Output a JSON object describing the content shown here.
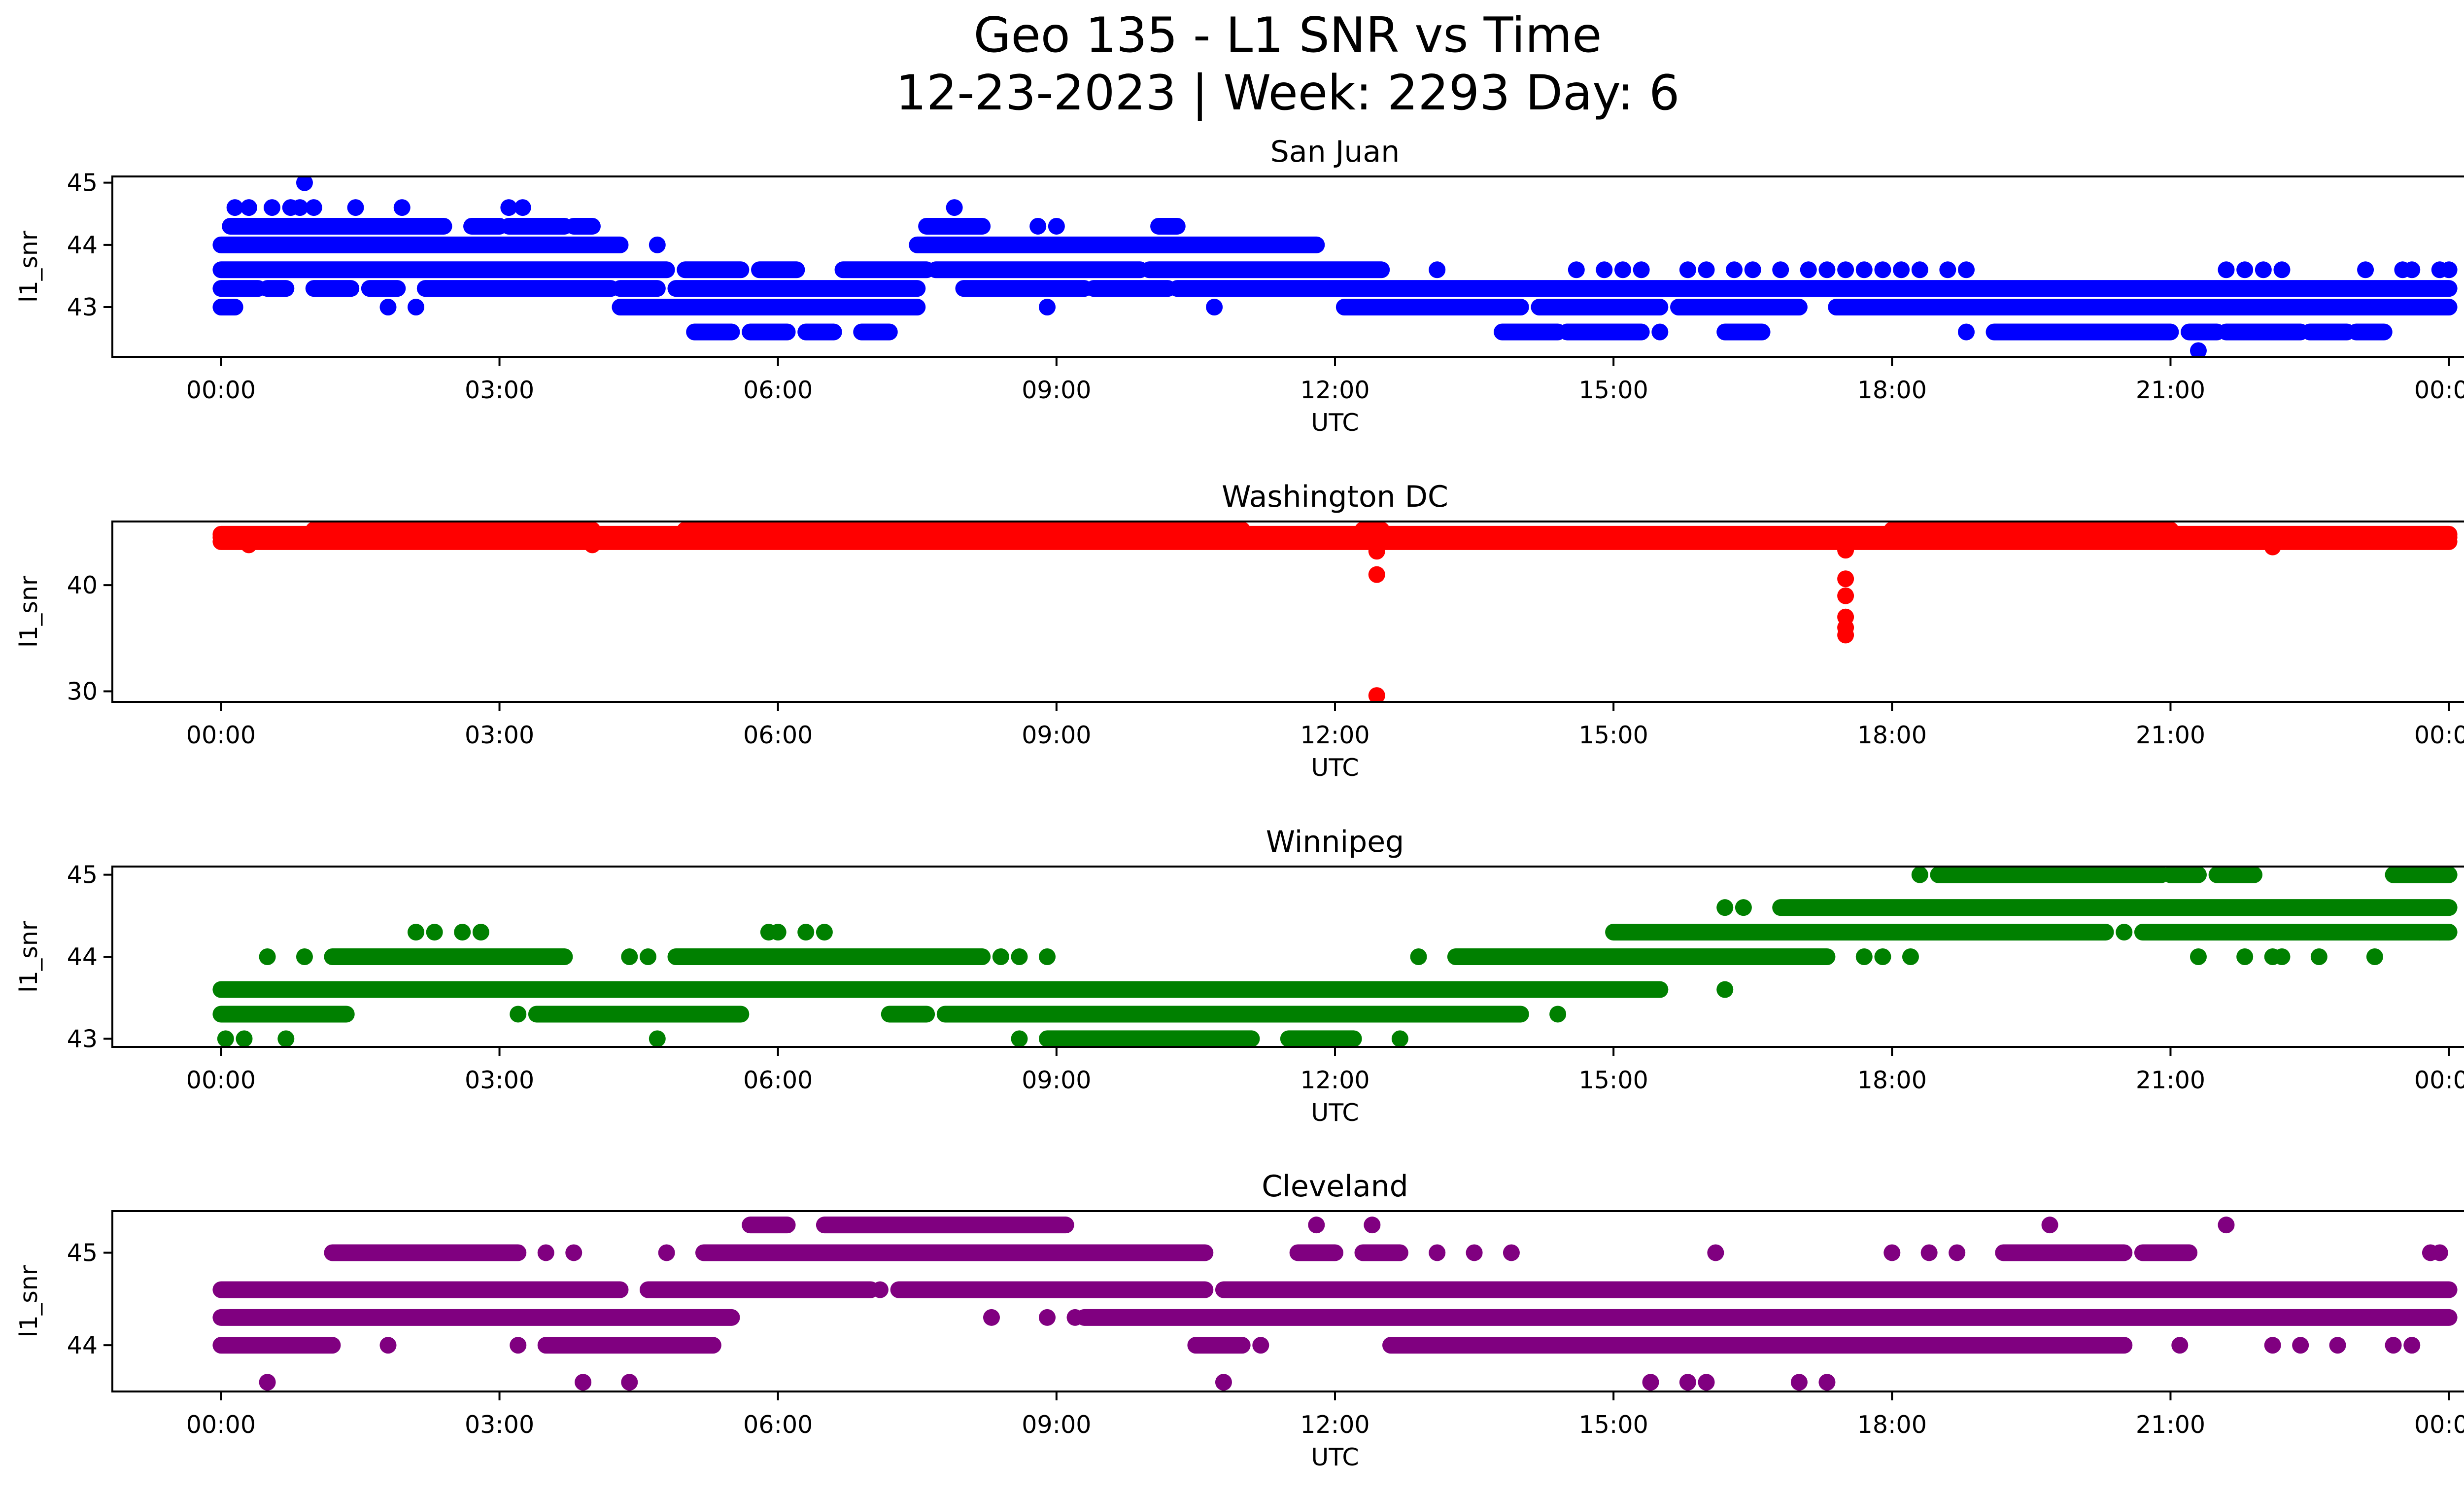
{
  "figure": {
    "title_line1": "Geo 135 - L1 SNR vs Time",
    "title_line2": "12-23-2023 | Week: 2293 Day: 6"
  },
  "chart_data": [
    {
      "type": "scatter",
      "title": "San Juan",
      "xlabel": "UTC",
      "ylabel": "l1_snr",
      "color": "#0000ff",
      "xlim_hours": [
        -1.17,
        25.17
      ],
      "ylim": [
        42.2,
        45.1
      ],
      "xticks": [
        "00:00",
        "03:00",
        "06:00",
        "09:00",
        "12:00",
        "15:00",
        "18:00",
        "21:00",
        "00:00"
      ],
      "yticks": [
        43,
        44,
        45
      ],
      "bands": [
        {
          "y": 43.6,
          "ranges": [
            [
              0.0,
              4.8
            ],
            [
              5.0,
              5.6
            ],
            [
              5.8,
              6.2
            ],
            [
              6.7,
              7.6
            ],
            [
              7.7,
              9.9
            ],
            [
              10.0,
              12.5
            ]
          ]
        },
        {
          "y": 43.3,
          "ranges": [
            [
              0.0,
              0.4
            ],
            [
              0.5,
              0.7
            ],
            [
              1.0,
              1.4
            ],
            [
              1.6,
              1.9
            ],
            [
              2.2,
              4.2
            ],
            [
              4.3,
              4.7
            ],
            [
              4.9,
              7.5
            ],
            [
              8.0,
              9.3
            ],
            [
              9.4,
              10.2
            ],
            [
              10.3,
              24.0
            ]
          ]
        },
        {
          "y": 43.0,
          "ranges": [
            [
              0.0,
              0.15
            ],
            [
              4.3,
              7.5
            ],
            [
              12.1,
              14.0
            ],
            [
              14.2,
              15.5
            ],
            [
              15.7,
              17.0
            ],
            [
              17.4,
              24.0
            ]
          ]
        },
        {
          "y": 44.0,
          "ranges": [
            [
              0.0,
              4.3
            ],
            [
              7.5,
              11.8
            ]
          ]
        },
        {
          "y": 44.3,
          "ranges": [
            [
              0.1,
              1.3
            ],
            [
              1.3,
              2.4
            ],
            [
              2.7,
              3.0
            ],
            [
              3.1,
              3.7
            ],
            [
              3.8,
              4.0
            ],
            [
              7.6,
              8.2
            ],
            [
              10.1,
              10.3
            ]
          ]
        },
        {
          "y": 42.6,
          "ranges": [
            [
              5.1,
              5.5
            ],
            [
              5.7,
              6.1
            ],
            [
              6.3,
              6.6
            ],
            [
              6.9,
              7.2
            ],
            [
              13.8,
              14.4
            ],
            [
              14.5,
              15.3
            ],
            [
              16.2,
              16.6
            ],
            [
              19.1,
              21.0
            ],
            [
              21.2,
              21.5
            ],
            [
              21.6,
              22.4
            ],
            [
              22.5,
              22.9
            ],
            [
              23.0,
              23.3
            ]
          ]
        }
      ],
      "points": [
        {
          "x": 0.15,
          "y": 44.6
        },
        {
          "x": 0.3,
          "y": 44.6
        },
        {
          "x": 0.55,
          "y": 44.6
        },
        {
          "x": 0.75,
          "y": 44.6
        },
        {
          "x": 0.85,
          "y": 44.6
        },
        {
          "x": 1.0,
          "y": 44.6
        },
        {
          "x": 1.45,
          "y": 44.6
        },
        {
          "x": 1.95,
          "y": 44.6
        },
        {
          "x": 0.9,
          "y": 45.0
        },
        {
          "x": 3.1,
          "y": 44.6
        },
        {
          "x": 3.25,
          "y": 44.6
        },
        {
          "x": 4.7,
          "y": 44.0
        },
        {
          "x": 7.9,
          "y": 44.6
        },
        {
          "x": 8.8,
          "y": 44.3
        },
        {
          "x": 9.0,
          "y": 44.3
        },
        {
          "x": 1.8,
          "y": 43.0
        },
        {
          "x": 2.1,
          "y": 43.0
        },
        {
          "x": 8.9,
          "y": 43.0
        },
        {
          "x": 10.7,
          "y": 43.0
        },
        {
          "x": 13.1,
          "y": 43.6
        },
        {
          "x": 14.6,
          "y": 43.6
        },
        {
          "x": 14.9,
          "y": 43.6
        },
        {
          "x": 15.1,
          "y": 43.6
        },
        {
          "x": 15.3,
          "y": 43.6
        },
        {
          "x": 15.8,
          "y": 43.6
        },
        {
          "x": 16.0,
          "y": 43.6
        },
        {
          "x": 16.3,
          "y": 43.6
        },
        {
          "x": 16.5,
          "y": 43.6
        },
        {
          "x": 16.8,
          "y": 43.6
        },
        {
          "x": 17.1,
          "y": 43.6
        },
        {
          "x": 17.3,
          "y": 43.6
        },
        {
          "x": 17.5,
          "y": 43.6
        },
        {
          "x": 17.7,
          "y": 43.6
        },
        {
          "x": 17.9,
          "y": 43.6
        },
        {
          "x": 18.1,
          "y": 43.6
        },
        {
          "x": 18.3,
          "y": 43.6
        },
        {
          "x": 18.6,
          "y": 43.6
        },
        {
          "x": 18.8,
          "y": 43.6
        },
        {
          "x": 21.6,
          "y": 43.6
        },
        {
          "x": 21.8,
          "y": 43.6
        },
        {
          "x": 22.0,
          "y": 43.6
        },
        {
          "x": 22.2,
          "y": 43.6
        },
        {
          "x": 23.1,
          "y": 43.6
        },
        {
          "x": 23.5,
          "y": 43.6
        },
        {
          "x": 23.6,
          "y": 43.6
        },
        {
          "x": 23.9,
          "y": 43.6
        },
        {
          "x": 24.0,
          "y": 43.6
        },
        {
          "x": 15.5,
          "y": 42.6
        },
        {
          "x": 18.8,
          "y": 42.6
        },
        {
          "x": 21.3,
          "y": 42.3
        }
      ]
    },
    {
      "type": "scatter",
      "title": "Washington DC",
      "xlabel": "UTC",
      "ylabel": "l1_snr",
      "color": "#ff0000",
      "xlim_hours": [
        -1.17,
        25.17
      ],
      "ylim": [
        29.0,
        46.0
      ],
      "xticks": [
        "00:00",
        "03:00",
        "06:00",
        "09:00",
        "12:00",
        "15:00",
        "18:00",
        "21:00",
        "00:00"
      ],
      "yticks": [
        30,
        40
      ],
      "bands": [
        {
          "y": 44.1,
          "ranges": [
            [
              0.0,
              24.0
            ]
          ]
        },
        {
          "y": 44.5,
          "ranges": [
            [
              0.0,
              24.0
            ]
          ]
        },
        {
          "y": 44.8,
          "ranges": [
            [
              0.0,
              24.0
            ]
          ]
        },
        {
          "y": 45.2,
          "ranges": [
            [
              1.0,
              4.0
            ],
            [
              5.0,
              11.0
            ],
            [
              12.3,
              12.5
            ],
            [
              18.0,
              21.0
            ]
          ]
        }
      ],
      "points": [
        {
          "x": 12.45,
          "y": 43.2
        },
        {
          "x": 12.45,
          "y": 41.0
        },
        {
          "x": 12.45,
          "y": 29.6
        },
        {
          "x": 17.5,
          "y": 43.3
        },
        {
          "x": 17.5,
          "y": 40.6
        },
        {
          "x": 17.5,
          "y": 39.0
        },
        {
          "x": 17.5,
          "y": 37.0
        },
        {
          "x": 17.5,
          "y": 36.0
        },
        {
          "x": 17.5,
          "y": 35.3
        },
        {
          "x": 0.3,
          "y": 43.8
        },
        {
          "x": 4.0,
          "y": 43.8
        },
        {
          "x": 22.1,
          "y": 43.6
        }
      ]
    },
    {
      "type": "scatter",
      "title": "Winnipeg",
      "xlabel": "UTC",
      "ylabel": "l1_snr",
      "color": "#008000",
      "xlim_hours": [
        -1.17,
        25.17
      ],
      "ylim": [
        42.9,
        45.1
      ],
      "xticks": [
        "00:00",
        "03:00",
        "06:00",
        "09:00",
        "12:00",
        "15:00",
        "18:00",
        "21:00",
        "00:00"
      ],
      "yticks": [
        43,
        44,
        45
      ],
      "bands": [
        {
          "y": 43.6,
          "ranges": [
            [
              0.0,
              15.5
            ]
          ]
        },
        {
          "y": 43.3,
          "ranges": [
            [
              0.0,
              1.35
            ],
            [
              3.4,
              5.6
            ],
            [
              7.2,
              7.6
            ],
            [
              7.8,
              14.0
            ]
          ]
        },
        {
          "y": 43.0,
          "ranges": [
            [
              8.9,
              11.1
            ],
            [
              11.5,
              12.2
            ]
          ]
        },
        {
          "y": 44.0,
          "ranges": [
            [
              1.2,
              3.7
            ],
            [
              4.9,
              8.2
            ],
            [
              13.3,
              17.3
            ]
          ]
        },
        {
          "y": 44.3,
          "ranges": [
            [
              15.0,
              20.3
            ],
            [
              20.7,
              24.0
            ]
          ]
        },
        {
          "y": 44.6,
          "ranges": [
            [
              16.8,
              24.0
            ]
          ]
        },
        {
          "y": 45.0,
          "ranges": [
            [
              18.5,
              20.9
            ],
            [
              21.0,
              21.3
            ],
            [
              21.5,
              21.9
            ],
            [
              23.4,
              24.0
            ]
          ]
        }
      ],
      "points": [
        {
          "x": 0.05,
          "y": 43.0
        },
        {
          "x": 0.25,
          "y": 43.0
        },
        {
          "x": 0.7,
          "y": 43.0
        },
        {
          "x": 0.5,
          "y": 44.0
        },
        {
          "x": 0.9,
          "y": 44.0
        },
        {
          "x": 2.1,
          "y": 44.3
        },
        {
          "x": 2.3,
          "y": 44.3
        },
        {
          "x": 2.6,
          "y": 44.3
        },
        {
          "x": 2.8,
          "y": 44.3
        },
        {
          "x": 3.2,
          "y": 43.3
        },
        {
          "x": 4.4,
          "y": 44.0
        },
        {
          "x": 4.6,
          "y": 44.0
        },
        {
          "x": 4.7,
          "y": 43.0
        },
        {
          "x": 5.9,
          "y": 44.3
        },
        {
          "x": 6.0,
          "y": 44.3
        },
        {
          "x": 6.3,
          "y": 44.3
        },
        {
          "x": 6.5,
          "y": 44.3
        },
        {
          "x": 8.4,
          "y": 44.0
        },
        {
          "x": 8.6,
          "y": 44.0
        },
        {
          "x": 8.9,
          "y": 44.0
        },
        {
          "x": 8.6,
          "y": 43.0
        },
        {
          "x": 12.7,
          "y": 43.0
        },
        {
          "x": 12.9,
          "y": 44.0
        },
        {
          "x": 14.4,
          "y": 43.3
        },
        {
          "x": 16.2,
          "y": 43.6
        },
        {
          "x": 16.2,
          "y": 44.6
        },
        {
          "x": 16.4,
          "y": 44.6
        },
        {
          "x": 17.7,
          "y": 44.0
        },
        {
          "x": 17.9,
          "y": 44.0
        },
        {
          "x": 18.2,
          "y": 44.0
        },
        {
          "x": 18.3,
          "y": 45.0
        },
        {
          "x": 20.5,
          "y": 44.3
        },
        {
          "x": 21.3,
          "y": 44.0
        },
        {
          "x": 21.8,
          "y": 44.0
        },
        {
          "x": 22.1,
          "y": 44.0
        },
        {
          "x": 22.2,
          "y": 44.0
        },
        {
          "x": 22.6,
          "y": 44.0
        },
        {
          "x": 23.2,
          "y": 44.0
        },
        {
          "x": 23.9,
          "y": 44.3
        }
      ]
    },
    {
      "type": "scatter",
      "title": "Cleveland",
      "xlabel": "UTC",
      "ylabel": "l1_snr",
      "color": "#800080",
      "xlim_hours": [
        -1.17,
        25.17
      ],
      "ylim": [
        43.5,
        45.45
      ],
      "xticks": [
        "00:00",
        "03:00",
        "06:00",
        "09:00",
        "12:00",
        "15:00",
        "18:00",
        "21:00",
        "00:00"
      ],
      "yticks": [
        44,
        45
      ],
      "bands": [
        {
          "y": 44.6,
          "ranges": [
            [
              0.0,
              4.3
            ],
            [
              4.6,
              7.0
            ],
            [
              7.3,
              10.6
            ],
            [
              10.8,
              24.0
            ]
          ]
        },
        {
          "y": 44.3,
          "ranges": [
            [
              0.0,
              5.5
            ],
            [
              9.3,
              24.0
            ]
          ]
        },
        {
          "y": 44.0,
          "ranges": [
            [
              0.0,
              1.2
            ],
            [
              3.5,
              5.3
            ],
            [
              10.5,
              11.0
            ],
            [
              12.6,
              20.5
            ]
          ]
        },
        {
          "y": 45.0,
          "ranges": [
            [
              1.2,
              3.2
            ],
            [
              5.2,
              10.6
            ],
            [
              11.6,
              12.0
            ],
            [
              12.3,
              12.7
            ],
            [
              19.2,
              20.5
            ],
            [
              20.7,
              21.2
            ]
          ]
        },
        {
          "y": 45.3,
          "ranges": [
            [
              5.7,
              6.1
            ],
            [
              6.5,
              9.1
            ]
          ]
        }
      ],
      "points": [
        {
          "x": 0.5,
          "y": 43.6
        },
        {
          "x": 1.8,
          "y": 44.0
        },
        {
          "x": 3.2,
          "y": 44.0
        },
        {
          "x": 3.5,
          "y": 45.0
        },
        {
          "x": 3.8,
          "y": 45.0
        },
        {
          "x": 3.9,
          "y": 43.6
        },
        {
          "x": 4.4,
          "y": 43.6
        },
        {
          "x": 4.8,
          "y": 45.0
        },
        {
          "x": 7.1,
          "y": 44.6
        },
        {
          "x": 8.3,
          "y": 44.3
        },
        {
          "x": 8.9,
          "y": 44.3
        },
        {
          "x": 9.2,
          "y": 44.3
        },
        {
          "x": 10.8,
          "y": 43.6
        },
        {
          "x": 11.8,
          "y": 45.3
        },
        {
          "x": 12.4,
          "y": 45.3
        },
        {
          "x": 11.2,
          "y": 44.0
        },
        {
          "x": 13.1,
          "y": 45.0
        },
        {
          "x": 13.5,
          "y": 45.0
        },
        {
          "x": 13.9,
          "y": 45.0
        },
        {
          "x": 15.4,
          "y": 43.6
        },
        {
          "x": 15.8,
          "y": 43.6
        },
        {
          "x": 16.0,
          "y": 43.6
        },
        {
          "x": 16.1,
          "y": 45.0
        },
        {
          "x": 17.0,
          "y": 43.6
        },
        {
          "x": 17.3,
          "y": 43.6
        },
        {
          "x": 18.0,
          "y": 45.0
        },
        {
          "x": 18.4,
          "y": 45.0
        },
        {
          "x": 18.7,
          "y": 45.0
        },
        {
          "x": 19.7,
          "y": 45.3
        },
        {
          "x": 21.1,
          "y": 44.0
        },
        {
          "x": 21.6,
          "y": 45.3
        },
        {
          "x": 22.1,
          "y": 44.0
        },
        {
          "x": 22.4,
          "y": 44.0
        },
        {
          "x": 22.8,
          "y": 44.0
        },
        {
          "x": 23.4,
          "y": 44.0
        },
        {
          "x": 23.6,
          "y": 44.0
        },
        {
          "x": 23.8,
          "y": 45.0
        },
        {
          "x": 23.9,
          "y": 45.0
        }
      ]
    }
  ]
}
